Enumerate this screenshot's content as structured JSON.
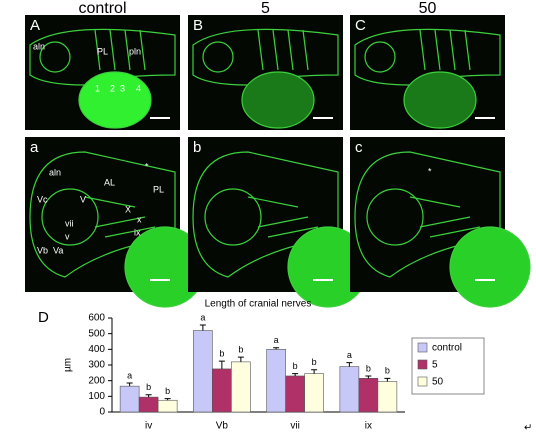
{
  "headers": [
    "control",
    "5",
    "50"
  ],
  "panels": [
    {
      "label": "A",
      "annotations": [
        "aln",
        "PL",
        "pln",
        "1",
        "2",
        "3",
        "4"
      ]
    },
    {
      "label": "B",
      "annotations": []
    },
    {
      "label": "C",
      "annotations": []
    },
    {
      "label": "a",
      "annotations": [
        "aln",
        "AL",
        "PL",
        "*",
        "Vc",
        "V",
        "vii",
        "v",
        "X",
        "x",
        "ix",
        "Vb",
        "Va"
      ]
    },
    {
      "label": "b",
      "annotations": []
    },
    {
      "label": "c",
      "annotations": [
        "*"
      ]
    }
  ],
  "chart_data": {
    "type": "bar",
    "label": "D",
    "title": "Length of cranial nerves",
    "y_label": "µm",
    "categories": [
      "iv",
      "Vb",
      "vii",
      "ix"
    ],
    "series": [
      {
        "name": "control",
        "color": "#c8c8f8",
        "values": [
          165,
          520,
          400,
          290
        ],
        "errors": [
          20,
          35,
          10,
          25
        ],
        "letters": [
          "a",
          "a",
          "a",
          "a"
        ]
      },
      {
        "name": "5",
        "color": "#b03068",
        "values": [
          95,
          275,
          230,
          215
        ],
        "errors": [
          15,
          50,
          15,
          15
        ],
        "letters": [
          "b",
          "b",
          "b",
          "b"
        ]
      },
      {
        "name": "50",
        "color": "#ffffe0",
        "values": [
          75,
          320,
          245,
          195
        ],
        "errors": [
          10,
          30,
          25,
          20
        ],
        "letters": [
          "b",
          "b",
          "b",
          "b"
        ]
      }
    ],
    "ylim": [
      0,
      600
    ],
    "yticks": [
      0,
      100,
      200,
      300,
      400,
      500,
      600
    ]
  },
  "mark": "↵"
}
